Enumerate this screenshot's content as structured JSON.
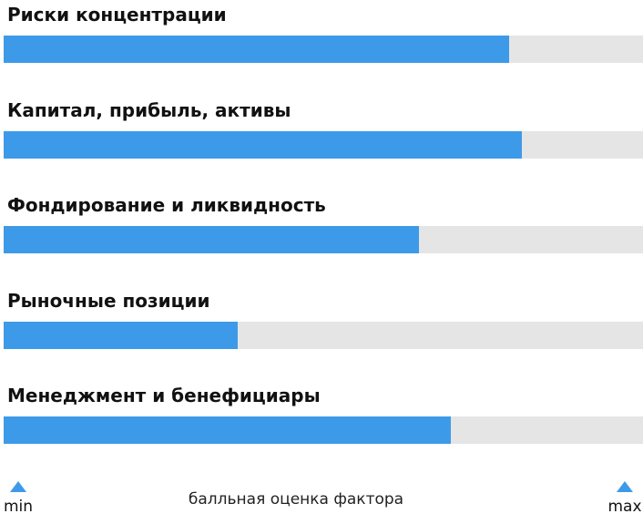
{
  "chart_data": {
    "type": "bar",
    "orientation": "horizontal",
    "categories": [
      "Риски концентрации",
      "Капитал, прибыль, активы",
      "Фондирование и ликвидность",
      "Рыночные позиции",
      "Менеджмент и бенефициары"
    ],
    "values": [
      0.79,
      0.81,
      0.65,
      0.366,
      0.7
    ],
    "xlim": [
      0,
      1
    ],
    "xlabel": "балльная оценка фактора",
    "scale": {
      "min_label": "min",
      "max_label": "max"
    },
    "colors": {
      "bar": "#3d9ae8",
      "track": "#e5e5e5",
      "marker": "#3d9ae8"
    }
  }
}
